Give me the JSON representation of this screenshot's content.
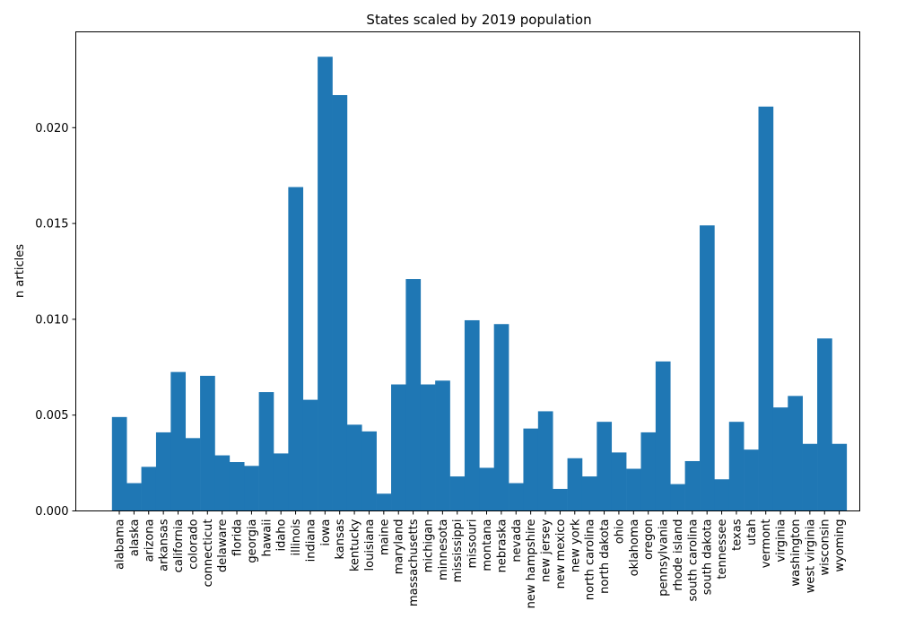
{
  "chart_data": {
    "type": "bar",
    "title": "States scaled by 2019 population",
    "xlabel": "",
    "ylabel": "n articles",
    "ylim": [
      0,
      0.025
    ],
    "yticks": [
      "0.000",
      "0.005",
      "0.010",
      "0.015",
      "0.020"
    ],
    "ytick_values": [
      0,
      0.005,
      0.01,
      0.015,
      0.02
    ],
    "grid": false,
    "bar_color": "#1f77b4",
    "categories": [
      "alabama",
      "alaska",
      "arizona",
      "arkansas",
      "california",
      "colorado",
      "connecticut",
      "delaware",
      "florida",
      "georgia",
      "hawaii",
      "idaho",
      "illinois",
      "indiana",
      "iowa",
      "kansas",
      "kentucky",
      "louisiana",
      "maine",
      "maryland",
      "massachusetts",
      "michigan",
      "minnesota",
      "mississippi",
      "missouri",
      "montana",
      "nebraska",
      "nevada",
      "new hampshire",
      "new jersey",
      "new mexico",
      "new york",
      "north carolina",
      "north dakota",
      "ohio",
      "oklahoma",
      "oregon",
      "pennsylvania",
      "rhode island",
      "south carolina",
      "south dakota",
      "tennessee",
      "texas",
      "utah",
      "vermont",
      "virginia",
      "washington",
      "west virginia",
      "wisconsin",
      "wyoming"
    ],
    "values": [
      0.0049,
      0.00145,
      0.0023,
      0.0041,
      0.00725,
      0.0038,
      0.00705,
      0.0029,
      0.00255,
      0.00235,
      0.0062,
      0.003,
      0.0169,
      0.0058,
      0.0237,
      0.0217,
      0.0045,
      0.00415,
      0.0009,
      0.0066,
      0.0121,
      0.0066,
      0.0068,
      0.0018,
      0.00995,
      0.00225,
      0.00975,
      0.00145,
      0.0043,
      0.0052,
      0.00115,
      0.00275,
      0.0018,
      0.00465,
      0.00305,
      0.0022,
      0.0041,
      0.0078,
      0.0014,
      0.0026,
      0.0149,
      0.00165,
      0.00465,
      0.0032,
      0.0211,
      0.0054,
      0.006,
      0.0035,
      0.009,
      0.0035
    ]
  }
}
